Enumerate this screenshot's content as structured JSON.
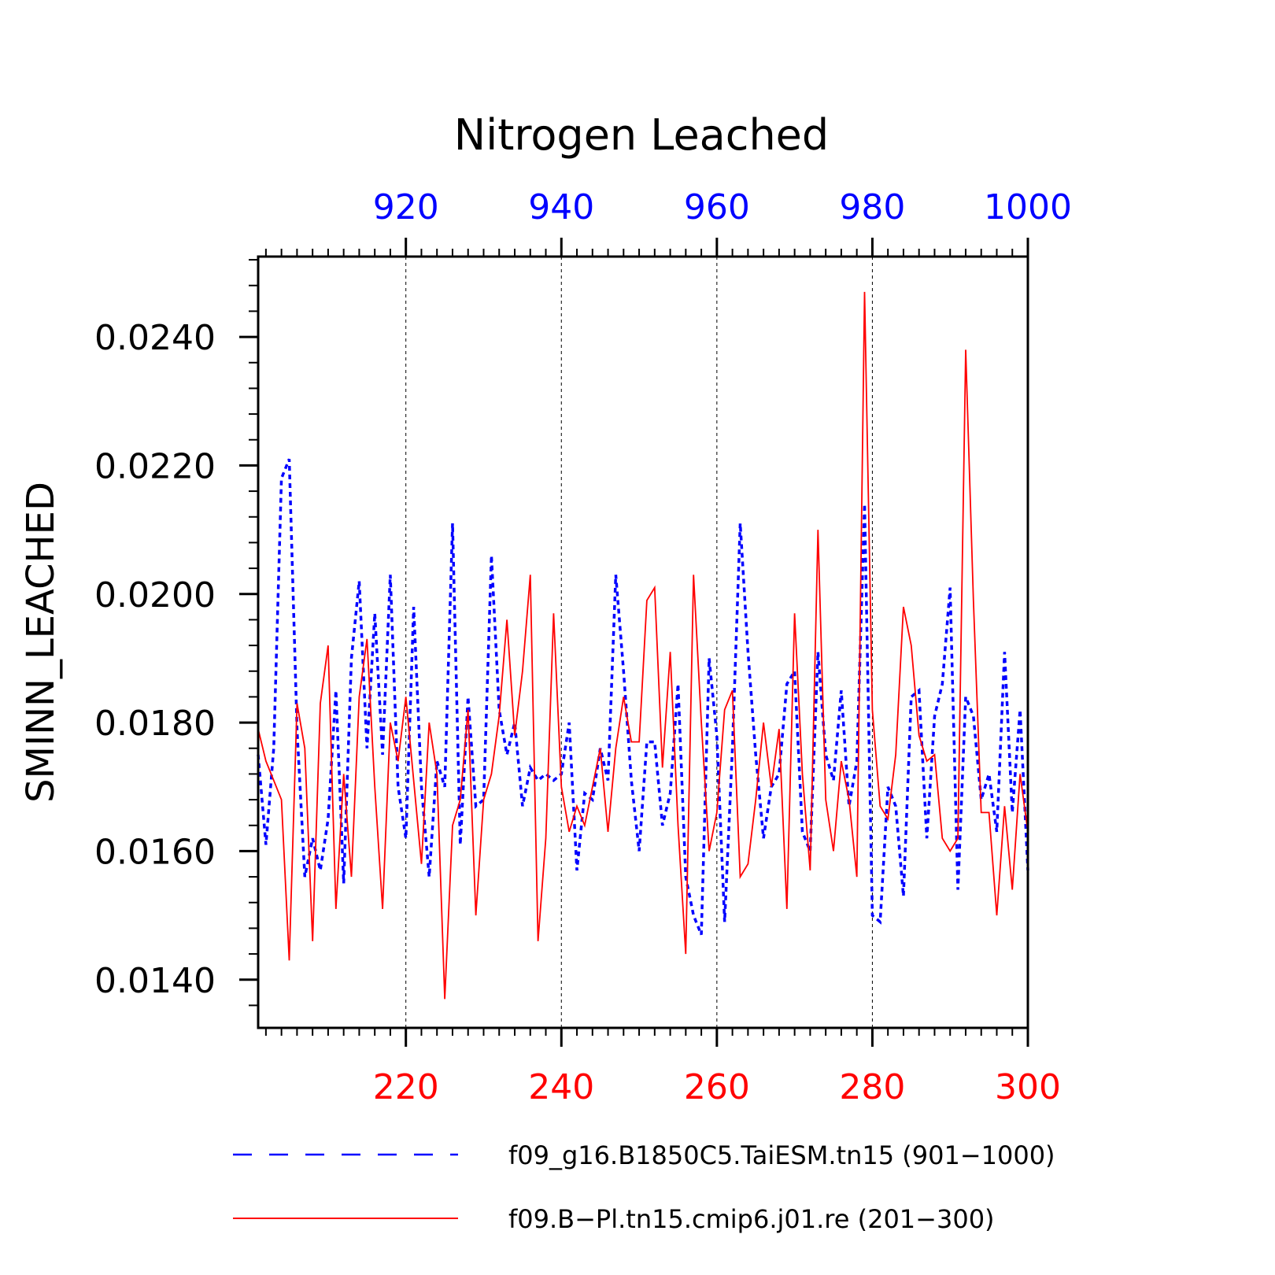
{
  "chart_data": {
    "type": "line",
    "title": "Nitrogen Leached",
    "ylabel": "SMINN_LEACHED",
    "ylim": [
      0.01325,
      0.02525
    ],
    "y_ticks": [
      0.014,
      0.016,
      0.018,
      0.02,
      0.022,
      0.024
    ],
    "y_tick_labels": [
      "0.0140",
      "0.0160",
      "0.0180",
      "0.0200",
      "0.0220",
      "0.0240"
    ],
    "x_bottom": {
      "range": [
        201,
        300
      ],
      "ticks": [
        220,
        240,
        260,
        280,
        300
      ],
      "tick_labels": [
        "220",
        "240",
        "260",
        "280",
        "300"
      ],
      "color": "#ff0000"
    },
    "x_top": {
      "range": [
        901,
        1000
      ],
      "ticks": [
        920,
        940,
        960,
        980,
        1000
      ],
      "tick_labels": [
        "920",
        "940",
        "960",
        "980",
        "1000"
      ],
      "color": "#0000ff"
    },
    "grid": "vertical dashed at major x ticks",
    "series": [
      {
        "name": "f09_g16.B1850C5.TaiESM.tn15 (901-1000)",
        "color": "#0000ff",
        "dash": "dashed",
        "axis": "top",
        "x_start": 901,
        "values": [
          0.0175,
          0.0161,
          0.0176,
          0.0218,
          0.0221,
          0.0179,
          0.0156,
          0.0162,
          0.0157,
          0.0165,
          0.0185,
          0.0155,
          0.019,
          0.0202,
          0.0176,
          0.0197,
          0.0175,
          0.0203,
          0.017,
          0.0162,
          0.0198,
          0.017,
          0.0156,
          0.0174,
          0.017,
          0.0211,
          0.0161,
          0.0184,
          0.0167,
          0.0168,
          0.0206,
          0.0182,
          0.0175,
          0.018,
          0.0167,
          0.0173,
          0.0171,
          0.0172,
          0.0171,
          0.0172,
          0.018,
          0.0157,
          0.0169,
          0.0168,
          0.0176,
          0.0171,
          0.0203,
          0.0188,
          0.0171,
          0.016,
          0.0177,
          0.0177,
          0.0164,
          0.0169,
          0.0186,
          0.0156,
          0.015,
          0.0147,
          0.019,
          0.0178,
          0.0149,
          0.0176,
          0.0211,
          0.0191,
          0.0175,
          0.0162,
          0.017,
          0.0172,
          0.0186,
          0.0188,
          0.0163,
          0.016,
          0.0191,
          0.0175,
          0.0171,
          0.0185,
          0.0167,
          0.0174,
          0.0214,
          0.015,
          0.0149,
          0.017,
          0.0167,
          0.0153,
          0.0184,
          0.0185,
          0.0162,
          0.0181,
          0.0186,
          0.0201,
          0.0154,
          0.0184,
          0.0181,
          0.0168,
          0.0172,
          0.0163,
          0.0191,
          0.0166,
          0.0182,
          0.0157
        ]
      },
      {
        "name": "f09.B-Pl.tn15.cmip6.j01.re (201-300)",
        "color": "#ff0000",
        "dash": "solid",
        "axis": "bottom",
        "x_start": 201,
        "values": [
          0.0179,
          0.0174,
          0.0171,
          0.0168,
          0.0143,
          0.0183,
          0.0176,
          0.0146,
          0.0183,
          0.0192,
          0.0151,
          0.0172,
          0.0156,
          0.0184,
          0.0193,
          0.017,
          0.0151,
          0.018,
          0.0174,
          0.0184,
          0.0171,
          0.0158,
          0.018,
          0.0172,
          0.0137,
          0.0164,
          0.0168,
          0.0182,
          0.015,
          0.0168,
          0.0172,
          0.0181,
          0.0196,
          0.0178,
          0.0188,
          0.0203,
          0.0146,
          0.0162,
          0.0197,
          0.017,
          0.0163,
          0.0167,
          0.0164,
          0.017,
          0.0176,
          0.0163,
          0.0176,
          0.0184,
          0.0177,
          0.0177,
          0.0199,
          0.0201,
          0.0173,
          0.0191,
          0.0164,
          0.0144,
          0.0203,
          0.018,
          0.016,
          0.0166,
          0.0182,
          0.0185,
          0.0156,
          0.0158,
          0.0168,
          0.018,
          0.017,
          0.0179,
          0.0151,
          0.0197,
          0.0172,
          0.0157,
          0.021,
          0.0168,
          0.016,
          0.0174,
          0.0168,
          0.0156,
          0.0247,
          0.0182,
          0.0167,
          0.0165,
          0.0175,
          0.0198,
          0.0192,
          0.0178,
          0.0174,
          0.0175,
          0.0162,
          0.016,
          0.0162,
          0.0238,
          0.0199,
          0.0166,
          0.0166,
          0.015,
          0.0167,
          0.0154,
          0.0172,
          0.0163
        ]
      }
    ],
    "legend": {
      "placement": "bottom",
      "entries": [
        "f09_g16.B1850C5.TaiESM.tn15 (901−1000)",
        "f09.B−Pl.tn15.cmip6.j01.re (201−300)"
      ]
    }
  }
}
